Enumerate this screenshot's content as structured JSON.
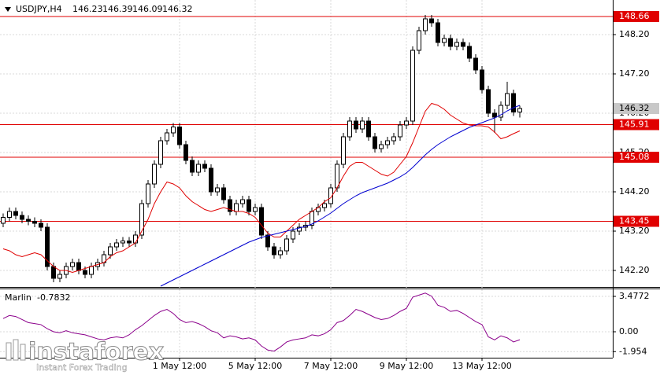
{
  "chart_data": [
    {
      "type": "candlestick",
      "title": "USDJPY,H4",
      "open": [
        143.4,
        143.55,
        143.7,
        143.6,
        143.5,
        143.45,
        143.4,
        143.3,
        142.3,
        142.0,
        142.1,
        142.3,
        142.4,
        142.2,
        142.1,
        142.3,
        142.4,
        142.6,
        142.8,
        142.9,
        142.95,
        142.9,
        143.1,
        143.9,
        144.4,
        144.9,
        145.5,
        145.7,
        145.85,
        145.4,
        145.0,
        144.7,
        144.9,
        144.8,
        144.2,
        144.3,
        144.0,
        143.7,
        143.9,
        144.0,
        143.7,
        143.8,
        143.1,
        142.8,
        142.6,
        142.7,
        143.0,
        143.2,
        143.3,
        143.35,
        143.7,
        143.8,
        143.9,
        144.3,
        144.9,
        145.6,
        146.0,
        145.8,
        146.0,
        145.6,
        145.3,
        145.4,
        145.5,
        145.6,
        145.9,
        146.0,
        147.8,
        148.3,
        148.6,
        148.5,
        148.0,
        148.1,
        147.9,
        148.0,
        147.9,
        147.6,
        147.3,
        146.8,
        146.2,
        146.1,
        146.4,
        146.7,
        146.23
      ],
      "high": [
        143.65,
        143.8,
        143.8,
        143.7,
        143.6,
        143.55,
        143.5,
        143.4,
        142.4,
        142.2,
        142.4,
        142.5,
        142.5,
        142.3,
        142.4,
        142.5,
        142.7,
        142.9,
        143.0,
        143.05,
        143.05,
        143.2,
        144.0,
        144.5,
        145.0,
        145.6,
        145.8,
        145.95,
        145.95,
        145.5,
        145.1,
        145.0,
        145.0,
        144.9,
        144.4,
        144.4,
        144.1,
        144.0,
        144.1,
        144.1,
        143.9,
        143.9,
        143.2,
        142.9,
        142.8,
        143.1,
        143.3,
        143.4,
        143.45,
        143.8,
        143.9,
        144.0,
        144.4,
        145.0,
        145.7,
        146.1,
        146.1,
        146.1,
        146.1,
        145.7,
        145.5,
        145.6,
        145.7,
        146.0,
        146.1,
        147.9,
        148.4,
        148.7,
        148.7,
        148.6,
        148.2,
        148.2,
        148.1,
        148.1,
        148.0,
        147.7,
        147.4,
        146.9,
        146.3,
        146.5,
        147.0,
        146.8,
        146.39
      ],
      "low": [
        143.3,
        143.45,
        143.5,
        143.4,
        143.35,
        143.3,
        143.2,
        142.2,
        141.9,
        141.9,
        142.0,
        142.2,
        142.1,
        142.0,
        142.0,
        142.2,
        142.3,
        142.5,
        142.7,
        142.8,
        142.8,
        142.8,
        143.0,
        143.8,
        144.3,
        144.8,
        145.4,
        145.6,
        145.3,
        144.9,
        144.6,
        144.6,
        144.7,
        144.1,
        144.1,
        143.9,
        143.6,
        143.6,
        143.8,
        143.6,
        143.6,
        143.0,
        142.7,
        142.5,
        142.5,
        142.6,
        142.9,
        143.1,
        143.2,
        143.25,
        143.6,
        143.7,
        143.8,
        144.2,
        144.8,
        145.5,
        145.7,
        145.7,
        145.5,
        145.2,
        145.2,
        145.3,
        145.4,
        145.5,
        145.8,
        145.9,
        147.7,
        148.2,
        148.4,
        147.9,
        147.9,
        147.8,
        147.8,
        147.8,
        147.5,
        147.2,
        146.7,
        146.1,
        145.7,
        146.0,
        146.3,
        146.13,
        146.09
      ],
      "close": [
        143.55,
        143.7,
        143.6,
        143.5,
        143.45,
        143.4,
        143.3,
        142.3,
        142.0,
        142.1,
        142.3,
        142.4,
        142.2,
        142.1,
        142.3,
        142.4,
        142.6,
        142.8,
        142.9,
        142.95,
        142.9,
        143.1,
        143.9,
        144.4,
        144.9,
        145.5,
        145.7,
        145.85,
        145.4,
        145.0,
        144.7,
        144.9,
        144.8,
        144.2,
        144.3,
        144.0,
        143.7,
        143.9,
        144.0,
        143.7,
        143.8,
        143.1,
        142.8,
        142.6,
        142.7,
        143.0,
        143.2,
        143.3,
        143.35,
        143.7,
        143.8,
        143.9,
        144.3,
        144.9,
        145.6,
        146.0,
        145.8,
        146.0,
        145.6,
        145.3,
        145.4,
        145.5,
        145.6,
        145.9,
        146.0,
        147.8,
        148.3,
        148.6,
        148.5,
        148.0,
        148.1,
        147.9,
        148.0,
        147.9,
        147.6,
        147.3,
        146.8,
        146.2,
        146.1,
        146.4,
        146.7,
        146.23,
        146.32
      ],
      "overlays": [
        {
          "color": "#e00000",
          "values": [
            142.75,
            142.7,
            142.6,
            142.55,
            142.6,
            142.65,
            142.6,
            142.45,
            142.3,
            142.2,
            142.2,
            142.15,
            142.2,
            142.25,
            142.3,
            142.35,
            142.4,
            142.55,
            142.65,
            142.7,
            142.8,
            142.9,
            143.2,
            143.5,
            143.9,
            144.2,
            144.45,
            144.4,
            144.3,
            144.1,
            143.95,
            143.85,
            143.75,
            143.7,
            143.75,
            143.8,
            143.75,
            143.7,
            143.7,
            143.65,
            143.55,
            143.35,
            143.15,
            143.05,
            143.05,
            143.2,
            143.35,
            143.5,
            143.6,
            143.7,
            143.8,
            143.95,
            144.05,
            144.3,
            144.6,
            144.85,
            144.95,
            144.95,
            144.85,
            144.75,
            144.65,
            144.6,
            144.7,
            144.9,
            145.1,
            145.45,
            145.85,
            146.25,
            146.45,
            146.4,
            146.3,
            146.15,
            146.05,
            145.95,
            145.9,
            145.88,
            145.88,
            145.85,
            145.72,
            145.55,
            145.6,
            145.68,
            145.75
          ]
        },
        {
          "color": "#0000d0",
          "values": [
            null,
            null,
            null,
            null,
            null,
            null,
            null,
            null,
            null,
            null,
            null,
            null,
            null,
            null,
            null,
            null,
            null,
            null,
            null,
            null,
            null,
            null,
            null,
            null,
            null,
            141.8,
            141.88,
            141.96,
            142.04,
            142.12,
            142.2,
            142.28,
            142.36,
            142.44,
            142.52,
            142.6,
            142.68,
            142.76,
            142.84,
            142.92,
            142.98,
            143.04,
            143.08,
            143.12,
            143.16,
            143.2,
            143.24,
            143.28,
            143.32,
            143.38,
            143.46,
            143.56,
            143.66,
            143.78,
            143.9,
            144.0,
            144.1,
            144.18,
            144.24,
            144.3,
            144.36,
            144.42,
            144.5,
            144.58,
            144.68,
            144.82,
            144.98,
            145.14,
            145.28,
            145.4,
            145.5,
            145.6,
            145.68,
            145.76,
            145.84,
            145.9,
            145.96,
            146.02,
            146.08,
            146.16,
            146.26,
            146.34,
            146.4
          ]
        }
      ],
      "levels": [
        148.66,
        145.91,
        145.08,
        143.45
      ],
      "level_color": "#e00000",
      "ylim": [
        141.78,
        149.08
      ],
      "yticks": [
        {
          "value": 148.2,
          "label": "148.20"
        },
        {
          "value": 147.2,
          "label": "147.20"
        },
        {
          "value": 146.2,
          "label": "146.20"
        },
        {
          "value": 145.2,
          "label": "145.20"
        },
        {
          "value": 144.2,
          "label": "144.20"
        },
        {
          "value": 143.2,
          "label": "143.20"
        },
        {
          "value": 142.2,
          "label": "142.20"
        }
      ],
      "xticks": [
        {
          "value": 28,
          "label": "1 May 12:00"
        },
        {
          "value": 40,
          "label": "5 May 12:00"
        },
        {
          "value": 52,
          "label": "7 May 12:00"
        },
        {
          "value": 64,
          "label": "9 May 12:00"
        },
        {
          "value": 76,
          "label": "13 May 12:00"
        }
      ],
      "grid": true
    },
    {
      "type": "line",
      "title": "Marlin",
      "color": "#8b008b",
      "values": [
        1.3,
        1.6,
        1.5,
        1.2,
        0.9,
        0.8,
        0.7,
        0.3,
        0.0,
        -0.1,
        0.1,
        -0.1,
        -0.2,
        -0.3,
        -0.5,
        -0.7,
        -0.8,
        -0.6,
        -0.5,
        -0.6,
        -0.3,
        0.2,
        0.6,
        1.1,
        1.6,
        2.0,
        2.2,
        1.8,
        1.2,
        0.9,
        1.0,
        0.8,
        0.5,
        0.1,
        -0.1,
        -0.6,
        -0.4,
        -0.5,
        -0.7,
        -0.6,
        -0.8,
        -1.4,
        -1.8,
        -1.9,
        -1.5,
        -1.0,
        -0.8,
        -0.7,
        -0.6,
        -0.3,
        -0.4,
        -0.2,
        0.2,
        0.9,
        1.1,
        1.6,
        2.2,
        2.0,
        1.7,
        1.4,
        1.2,
        1.3,
        1.6,
        2.0,
        2.3,
        3.4,
        3.6,
        3.8,
        3.5,
        2.6,
        2.4,
        2.0,
        2.1,
        1.8,
        1.4,
        1.0,
        0.7,
        -0.5,
        -0.8,
        -0.4,
        -0.6,
        -1.0,
        -0.7832
      ],
      "ylim": [
        -2.55,
        4.25
      ],
      "yticks": [
        3.4772,
        {
          "value": 0,
          "label": "0.00"
        },
        -1.954
      ]
    }
  ],
  "watermark": {
    "name": "instaforex",
    "tagline": "Instant Forex Trading"
  }
}
